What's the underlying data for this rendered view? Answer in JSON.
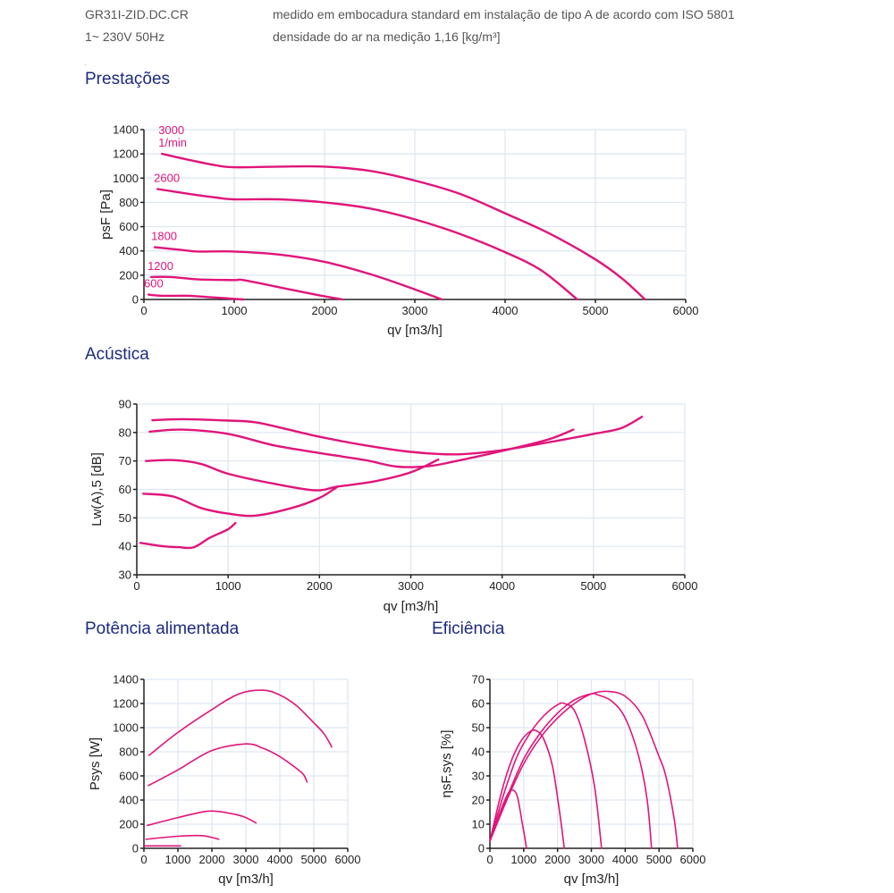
{
  "header": {
    "model": "GR31I-ZID.DC.CR",
    "supply": "1~ 230V 50Hz",
    "measurement_note": "medido em embocadura standard em instalação de tipo A de acordo com ISO 5801",
    "density_note": "densidade do ar na medição 1,16 [kg/m³]"
  },
  "sections": {
    "performance": "Prestações",
    "acoustics": "Acústica",
    "power": "Potência alimentada",
    "efficiency": "Eficiência"
  },
  "colors": {
    "curve": "#e0157a",
    "title": "#1c2a80",
    "grid": "#dde6f0"
  },
  "chart_data": [
    {
      "id": "performance",
      "type": "line",
      "title": "Prestações",
      "xlabel": "qv [m3/h]",
      "ylabel": "psF [Pa]",
      "xlim": [
        0,
        6000
      ],
      "ylim": [
        0,
        1400
      ],
      "xticks": [
        0,
        1000,
        2000,
        3000,
        4000,
        5000,
        6000
      ],
      "yticks": [
        0,
        200,
        400,
        600,
        800,
        1000,
        1200,
        1400
      ],
      "grid": true,
      "series": [
        {
          "name": "3000 1/min",
          "label": [
            "3000",
            "1/min"
          ],
          "x": [
            200,
            500,
            800,
            1000,
            1500,
            2000,
            2500,
            3000,
            3500,
            4000,
            4500,
            5000,
            5300,
            5550
          ],
          "y": [
            1200,
            1150,
            1105,
            1090,
            1095,
            1095,
            1060,
            980,
            870,
            710,
            540,
            330,
            170,
            0
          ]
        },
        {
          "name": "2600",
          "label": [
            "2600"
          ],
          "x": [
            150,
            500,
            800,
            1000,
            1500,
            2000,
            2500,
            3000,
            3500,
            4000,
            4400,
            4800
          ],
          "y": [
            910,
            870,
            840,
            825,
            825,
            800,
            750,
            660,
            540,
            390,
            240,
            0
          ]
        },
        {
          "name": "1800",
          "label": [
            "1800"
          ],
          "x": [
            120,
            400,
            600,
            1000,
            1500,
            2000,
            2500,
            2900,
            3300
          ],
          "y": [
            430,
            410,
            395,
            395,
            370,
            310,
            210,
            110,
            0
          ]
        },
        {
          "name": "1200",
          "label": [
            "1200"
          ],
          "x": [
            80,
            300,
            600,
            1000,
            1100,
            1500,
            1900,
            2200
          ],
          "y": [
            185,
            185,
            165,
            160,
            160,
            100,
            40,
            0
          ]
        },
        {
          "name": "600",
          "label": [
            "600"
          ],
          "x": [
            50,
            200,
            500,
            700,
            900,
            1100
          ],
          "y": [
            40,
            30,
            30,
            20,
            10,
            0
          ]
        }
      ]
    },
    {
      "id": "acoustics",
      "type": "line",
      "title": "Acústica",
      "xlabel": "qv [m3/h]",
      "ylabel": "Lw(A),5 [dB]",
      "xlim": [
        0,
        6000
      ],
      "ylim": [
        30,
        90
      ],
      "xticks": [
        0,
        1000,
        2000,
        3000,
        4000,
        5000,
        6000
      ],
      "yticks": [
        30,
        40,
        50,
        60,
        70,
        80,
        90
      ],
      "grid": true,
      "series": [
        {
          "name": "3000",
          "x": [
            170,
            500,
            1000,
            1300,
            1600,
            2000,
            2500,
            3000,
            3500,
            4000,
            4500,
            5000,
            5300,
            5530
          ],
          "y": [
            84.3,
            84.7,
            84.2,
            83.6,
            81.5,
            78.5,
            75.5,
            73.2,
            72.3,
            73.8,
            76.5,
            79.5,
            81.5,
            85.5
          ]
        },
        {
          "name": "2600",
          "x": [
            140,
            500,
            1000,
            1500,
            2000,
            2500,
            2850,
            3200,
            3500,
            4000,
            4500,
            4780
          ],
          "y": [
            80.3,
            81.0,
            79.5,
            75.5,
            72.8,
            70.3,
            68.0,
            68.2,
            70.0,
            73.5,
            77.5,
            81.0
          ]
        },
        {
          "name": "1800",
          "x": [
            100,
            400,
            700,
            1000,
            1500,
            1950,
            2200,
            2600,
            3000,
            3300
          ],
          "y": [
            70.0,
            70.3,
            69.0,
            65.5,
            62.0,
            59.7,
            61.0,
            62.8,
            66.0,
            70.5
          ]
        },
        {
          "name": "1200",
          "x": [
            70,
            400,
            700,
            1000,
            1300,
            1700,
            2000,
            2200
          ],
          "y": [
            58.5,
            57.5,
            53.5,
            51.5,
            50.8,
            53.5,
            57.0,
            61.0
          ]
        },
        {
          "name": "600",
          "x": [
            40,
            300,
            450,
            620,
            800,
            1000,
            1080
          ],
          "y": [
            41.2,
            40.0,
            39.7,
            39.6,
            43.0,
            46.0,
            48.2
          ]
        }
      ]
    },
    {
      "id": "power",
      "type": "line",
      "title": "Potência alimentada",
      "xlabel": "qv [m3/h]",
      "ylabel": "Psys [W]",
      "xlim": [
        0,
        6000
      ],
      "ylim": [
        0,
        1400
      ],
      "xticks": [
        0,
        1000,
        2000,
        3000,
        4000,
        5000,
        6000
      ],
      "yticks": [
        0,
        200,
        400,
        600,
        800,
        1000,
        1200,
        1400
      ],
      "grid": true,
      "series": [
        {
          "name": "3000",
          "x": [
            150,
            1000,
            2000,
            2800,
            3500,
            4000,
            4500,
            5000,
            5300,
            5530
          ],
          "y": [
            770,
            960,
            1150,
            1280,
            1310,
            1270,
            1180,
            1040,
            950,
            840
          ]
        },
        {
          "name": "2600",
          "x": [
            130,
            1000,
            2000,
            3000,
            3500,
            4000,
            4500,
            4700,
            4800
          ],
          "y": [
            520,
            650,
            810,
            865,
            830,
            760,
            660,
            610,
            550
          ]
        },
        {
          "name": "1800",
          "x": [
            100,
            1000,
            1800,
            2200,
            2700,
            3000,
            3300
          ],
          "y": [
            190,
            255,
            305,
            305,
            280,
            255,
            210
          ]
        },
        {
          "name": "1200",
          "x": [
            60,
            1000,
            1700,
            2000,
            2200
          ],
          "y": [
            75,
            100,
            105,
            90,
            75
          ]
        },
        {
          "name": "600",
          "x": [
            20,
            500,
            1080
          ],
          "y": [
            20,
            20,
            20
          ]
        }
      ]
    },
    {
      "id": "efficiency",
      "type": "line",
      "title": "Eficiência",
      "xlabel": "qv [m3/h]",
      "ylabel": "ηsF,sys [%]",
      "xlim": [
        0,
        6000
      ],
      "ylim": [
        0,
        70
      ],
      "xticks": [
        0,
        1000,
        2000,
        3000,
        4000,
        5000,
        6000
      ],
      "yticks": [
        0,
        10,
        20,
        30,
        40,
        50,
        60,
        70
      ],
      "grid": true,
      "series": [
        {
          "name": "3000",
          "x": [
            0,
            500,
            1000,
            1500,
            2000,
            2500,
            3000,
            3500,
            4000,
            4500,
            5000,
            5200,
            5450,
            5550
          ],
          "y": [
            3,
            20,
            35,
            46,
            54,
            60,
            64,
            65,
            63,
            55,
            38,
            30,
            12,
            0
          ]
        },
        {
          "name": "2600",
          "x": [
            0,
            500,
            1000,
            1500,
            2000,
            2500,
            3000,
            3200,
            3600,
            4000,
            4400,
            4650,
            4780
          ],
          "y": [
            3,
            21,
            37,
            48,
            56,
            61.5,
            64,
            63.5,
            61,
            54,
            38,
            20,
            0
          ]
        },
        {
          "name": "1800",
          "x": [
            0,
            400,
            800,
            1200,
            1600,
            2000,
            2200,
            2500,
            2800,
            3100,
            3300
          ],
          "y": [
            3,
            22,
            38,
            48,
            55,
            59.5,
            60,
            57,
            45,
            25,
            0
          ]
        },
        {
          "name": "1200",
          "x": [
            0,
            300,
            600,
            900,
            1200,
            1400,
            1600,
            1850,
            2050,
            2200
          ],
          "y": [
            3,
            21,
            35,
            44,
            48.5,
            48.5,
            45,
            34,
            16,
            0
          ]
        },
        {
          "name": "600",
          "x": [
            0,
            300,
            550,
            700,
            820,
            950,
            1050,
            1080
          ],
          "y": [
            3,
            15,
            23,
            24,
            21,
            11,
            3,
            0
          ]
        }
      ]
    }
  ]
}
